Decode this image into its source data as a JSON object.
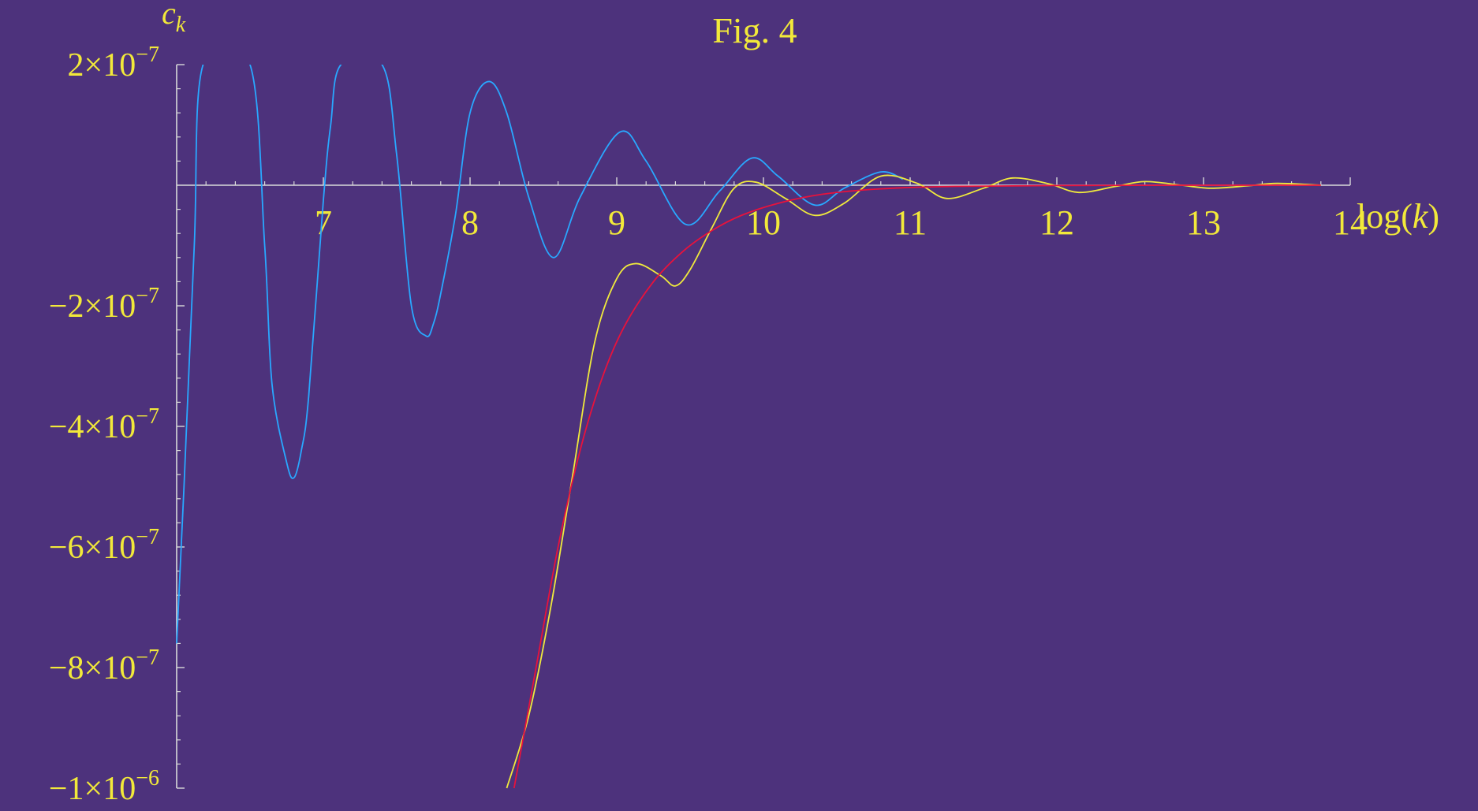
{
  "chart_data": {
    "type": "line",
    "title": "Fig. 4",
    "xlabel": "log(k)",
    "ylabel": "c",
    "ylabel_subscript": "k",
    "xlim": [
      6.0,
      14.0
    ],
    "ylim": [
      -1e-06,
      2e-07
    ],
    "grid": false,
    "x_ticks": [
      {
        "value": 7,
        "label": "7"
      },
      {
        "value": 8,
        "label": "8"
      },
      {
        "value": 9,
        "label": "9"
      },
      {
        "value": 10,
        "label": "10"
      },
      {
        "value": 11,
        "label": "11"
      },
      {
        "value": 12,
        "label": "12"
      },
      {
        "value": 13,
        "label": "13"
      },
      {
        "value": 14,
        "label": "14"
      }
    ],
    "y_ticks": [
      {
        "value": 2e-07,
        "label": "2×10",
        "exp": "−7",
        "neg": false
      },
      {
        "value": -2e-07,
        "label": "2×10",
        "exp": "−7",
        "neg": true
      },
      {
        "value": -4e-07,
        "label": "4×10",
        "exp": "−7",
        "neg": true
      },
      {
        "value": -6e-07,
        "label": "6×10",
        "exp": "−7",
        "neg": true
      },
      {
        "value": -8e-07,
        "label": "8×10",
        "exp": "−7",
        "neg": true
      },
      {
        "value": -1e-06,
        "label": "1×10",
        "exp": "−6",
        "neg": true
      }
    ],
    "series": [
      {
        "color": "#29a8ff",
        "x": [
          6.0,
          6.05,
          6.12,
          6.18,
          6.5,
          6.6,
          6.65,
          6.75,
          6.8,
          6.85,
          6.9,
          7.0,
          7.05,
          7.12,
          7.4,
          7.5,
          7.6,
          7.7,
          7.75,
          7.8,
          7.9,
          8.0,
          8.13,
          8.25,
          8.4,
          8.57,
          8.75,
          9.02,
          9.2,
          9.47,
          9.7,
          9.92,
          10.1,
          10.35,
          10.55,
          10.8,
          10.95
        ],
        "y": [
          -7.6e-07,
          -5e-07,
          -1e-07,
          2e-07,
          2e-07,
          -1e-07,
          -3.3e-07,
          -4.6e-07,
          -4.85e-07,
          -4.4e-07,
          -3.5e-07,
          -2.5e-08,
          1e-07,
          2e-07,
          2e-07,
          5e-08,
          -2e-07,
          -2.5e-07,
          -2.3e-07,
          -1.8e-07,
          -5e-08,
          1.2e-07,
          1.72e-07,
          1.2e-07,
          -2e-08,
          -1.2e-07,
          -2e-08,
          8.8e-08,
          4e-08,
          -6.5e-08,
          -1e-08,
          4.5e-08,
          1.5e-08,
          -3.3e-08,
          -5e-09,
          2.2e-08,
          1e-08
        ]
      },
      {
        "color": "#f0ea3c",
        "x": [
          8.25,
          8.4,
          8.55,
          8.7,
          8.85,
          9.0,
          9.13,
          9.3,
          9.4,
          9.5,
          9.65,
          9.8,
          9.95,
          10.15,
          10.35,
          10.55,
          10.8,
          11.05,
          11.25,
          11.5,
          11.7,
          11.95,
          12.15,
          12.4,
          12.6,
          12.85,
          13.05,
          13.3,
          13.5,
          13.8
        ],
        "y": [
          -1e-06,
          -8.8e-07,
          -7e-07,
          -4.8e-07,
          -2.6e-07,
          -1.55e-07,
          -1.3e-07,
          -1.5e-07,
          -1.67e-07,
          -1.4e-07,
          -7e-08,
          -5e-09,
          5e-09,
          -2.2e-08,
          -5e-08,
          -3e-08,
          1.5e-08,
          3e-09,
          -2.2e-08,
          -5e-09,
          1.2e-08,
          2e-09,
          -1.2e-08,
          -2e-09,
          6e-09,
          0.0,
          -5e-09,
          -1e-09,
          3e-09,
          0.0
        ]
      },
      {
        "color": "#e8123c",
        "x": [
          8.3,
          8.45,
          8.6,
          8.75,
          8.9,
          9.05,
          9.25,
          9.45,
          9.65,
          9.85,
          10.1,
          10.4,
          10.8,
          11.3,
          12.0,
          13.0,
          13.8
        ],
        "y": [
          -1e-06,
          -8e-07,
          -6e-07,
          -4.4e-07,
          -3.2e-07,
          -2.35e-07,
          -1.6e-07,
          -1.1e-07,
          -7.5e-08,
          -5e-08,
          -3e-08,
          -1.5e-08,
          -6e-09,
          -2e-09,
          -5e-10,
          0.0,
          0.0
        ]
      }
    ]
  }
}
